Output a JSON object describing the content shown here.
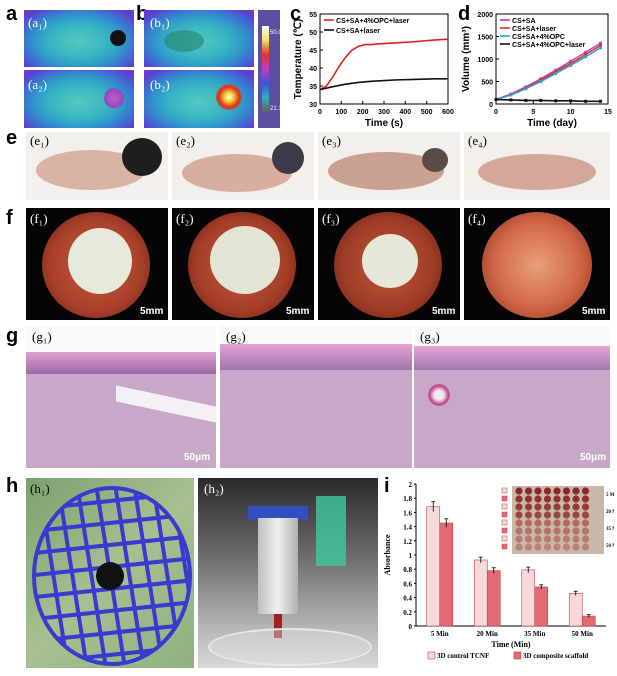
{
  "panels": {
    "a": {
      "label": "a",
      "sub1": "(a₁)",
      "sub2": "(a₂)"
    },
    "b": {
      "label": "b",
      "sub1": "(b₁)",
      "sub2": "(b₂)"
    },
    "colorbar": {
      "max": "50.0",
      "min": "21.1"
    },
    "c": {
      "label": "c"
    },
    "d": {
      "label": "d"
    },
    "e": {
      "label": "e",
      "subs": [
        "(e₁)",
        "(e₂)",
        "(e₃)",
        "(e₄)"
      ]
    },
    "f": {
      "label": "f",
      "subs": [
        "(f₁)",
        "(f₂)",
        "(f₃)",
        "(f₄)"
      ],
      "scale": "5mm"
    },
    "g": {
      "label": "g",
      "subs": [
        "(g₁)",
        "(g₂)",
        "(g₃)"
      ],
      "scale": "50μm"
    },
    "h": {
      "label": "h",
      "subs": [
        "(h₁)",
        "(h₂)"
      ]
    },
    "i": {
      "label": "i",
      "plate_labels": [
        "5 Min",
        "20 Min",
        "35 Min",
        "50 Min"
      ]
    }
  },
  "chart_data": [
    {
      "id": "c",
      "type": "line",
      "xlabel": "Time (s)",
      "ylabel": "Temperature (℃)",
      "xlim": [
        0,
        600
      ],
      "ylim": [
        30,
        55
      ],
      "xticks": [
        0,
        100,
        200,
        300,
        400,
        500,
        600
      ],
      "yticks": [
        30,
        35,
        40,
        45,
        50,
        55
      ],
      "legend_position": "top-left",
      "series": [
        {
          "name": "CS+SA+4%OPC+laser",
          "color": "#e02020",
          "x": [
            0,
            30,
            60,
            90,
            120,
            150,
            180,
            210,
            240,
            300,
            360,
            420,
            480,
            540,
            600
          ],
          "y": [
            34,
            35,
            37.5,
            40.5,
            43,
            45,
            46,
            46.5,
            46.5,
            46.8,
            47,
            47.2,
            47.5,
            47.8,
            48
          ]
        },
        {
          "name": "CS+SA+laser",
          "color": "#111111",
          "x": [
            0,
            60,
            120,
            180,
            240,
            300,
            360,
            420,
            480,
            540,
            600
          ],
          "y": [
            34,
            34.8,
            35.5,
            36,
            36.3,
            36.5,
            36.7,
            36.8,
            36.9,
            37,
            37
          ]
        }
      ]
    },
    {
      "id": "d",
      "type": "line",
      "xlabel": "Time (day)",
      "ylabel": "Volume (mm³)",
      "xlim": [
        0,
        15
      ],
      "ylim": [
        0,
        2000
      ],
      "xticks": [
        0,
        5,
        10,
        15
      ],
      "yticks": [
        0,
        500,
        1000,
        1500,
        2000
      ],
      "legend_position": "top-left",
      "series": [
        {
          "name": "CS+SA",
          "color": "#c040c0",
          "x": [
            0,
            2,
            4,
            6,
            8,
            10,
            12,
            14
          ],
          "y": [
            100,
            220,
            380,
            560,
            750,
            950,
            1150,
            1350
          ]
        },
        {
          "name": "CS+SA+laser",
          "color": "#e03030",
          "x": [
            0,
            2,
            4,
            6,
            8,
            10,
            12,
            14
          ],
          "y": [
            100,
            210,
            360,
            530,
            720,
            900,
            1100,
            1300
          ]
        },
        {
          "name": "CS+SA+4%OPC",
          "color": "#30a0c0",
          "x": [
            0,
            2,
            4,
            6,
            8,
            10,
            12,
            14
          ],
          "y": [
            100,
            200,
            340,
            500,
            680,
            860,
            1050,
            1250
          ]
        },
        {
          "name": "CS+SA+4%OPC+laser",
          "color": "#111111",
          "x": [
            0,
            2,
            4,
            6,
            8,
            10,
            12,
            14
          ],
          "y": [
            100,
            90,
            80,
            80,
            70,
            70,
            60,
            60
          ]
        }
      ]
    },
    {
      "id": "i",
      "type": "bar",
      "xlabel": "Time (Min)",
      "ylabel": "Absorbance",
      "categories": [
        "5 Min",
        "20 Min",
        "35 Min",
        "50 Min"
      ],
      "ylim": [
        0,
        2.0
      ],
      "yticks": [
        0,
        0.2,
        0.4,
        0.6,
        0.8,
        1.0,
        1.2,
        1.4,
        1.6,
        1.8,
        2.0
      ],
      "legend_position": "bottom",
      "series": [
        {
          "name": "3D control TCNF",
          "color": "#f7d9dc",
          "values": [
            1.68,
            0.93,
            0.79,
            0.46
          ],
          "errors": [
            0.07,
            0.04,
            0.04,
            0.03
          ]
        },
        {
          "name": "3D composite scaffold",
          "color": "#e36a73",
          "values": [
            1.45,
            0.78,
            0.55,
            0.14
          ],
          "errors": [
            0.06,
            0.04,
            0.03,
            0.02
          ]
        }
      ]
    }
  ]
}
